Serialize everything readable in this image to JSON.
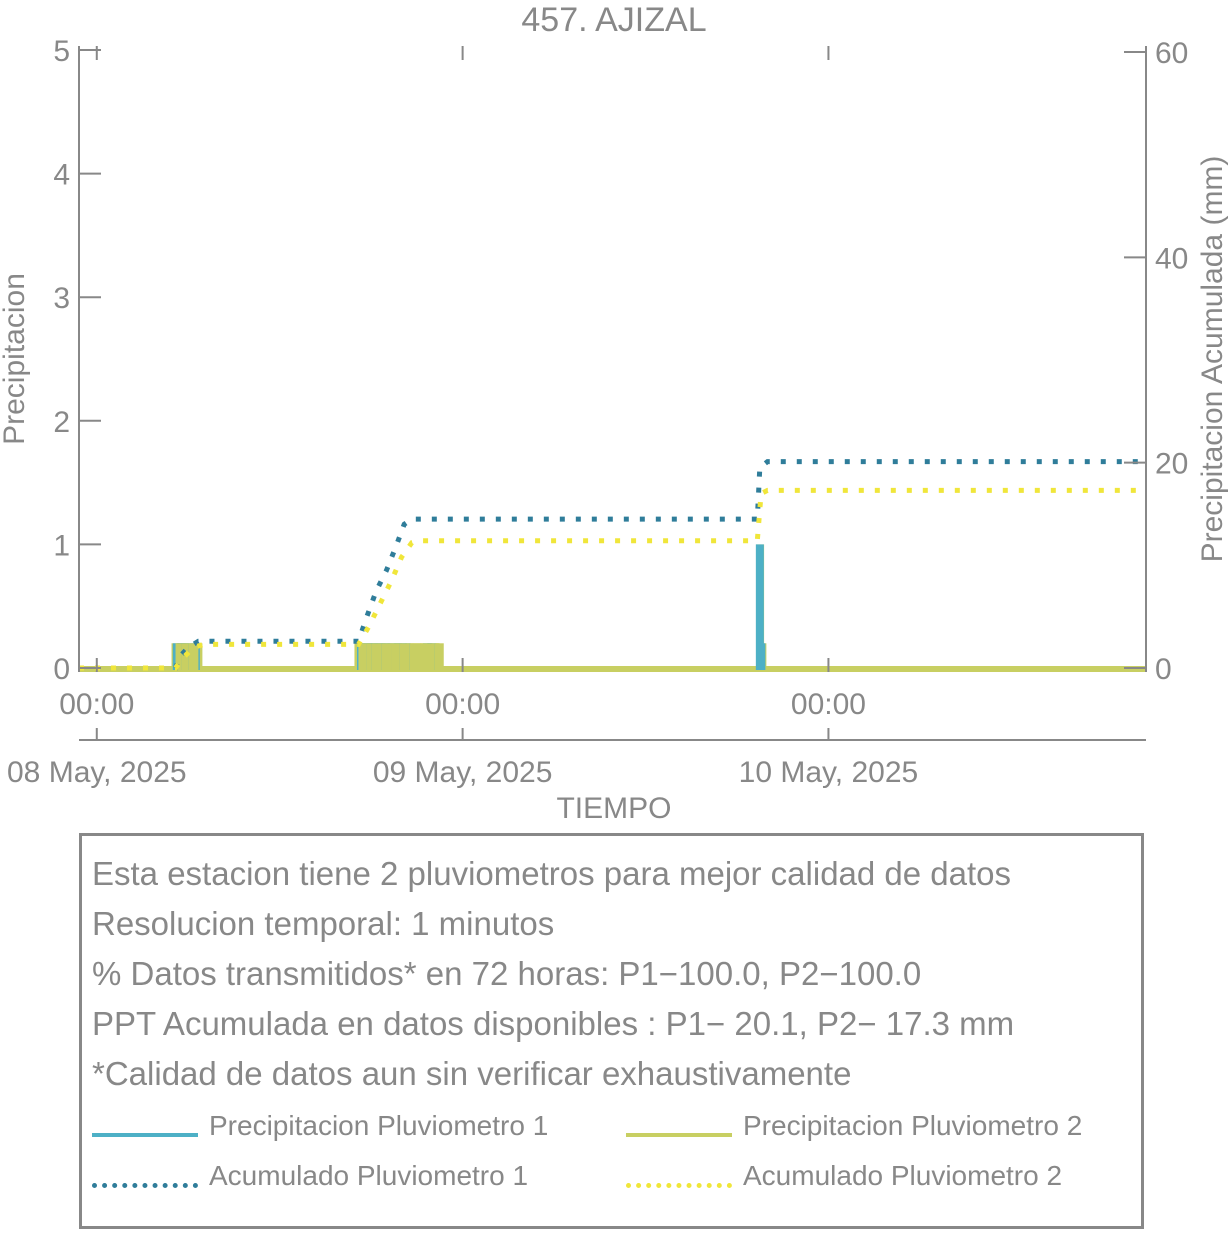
{
  "chart_data": {
    "type": "line",
    "title": "457. AJIZAL",
    "xlabel": "TIEMPO",
    "ylabel": "Precipitacion",
    "ylabel_right": "Precipitacion Acumulada (mm)",
    "x_range": [
      "2025-05-07 22:50",
      "2025-05-10 20:50"
    ],
    "ylim": [
      0,
      5
    ],
    "ylim_right": [
      0,
      60
    ],
    "y_ticks": [
      0,
      1,
      2,
      3,
      4,
      5
    ],
    "y_ticks_right": [
      0,
      20,
      40,
      60
    ],
    "x_ticks": [
      {
        "time": "2025-05-08 00:00",
        "label": "00:00",
        "date_label": "08 May, 2025"
      },
      {
        "time": "2025-05-09 00:00",
        "label": "00:00",
        "date_label": "09 May, 2025"
      },
      {
        "time": "2025-05-10 00:00",
        "label": "00:00",
        "date_label": "10 May, 2025"
      }
    ],
    "colors": {
      "p1": "#4db0c6",
      "p2": "#c8cf62",
      "acum1": "#2f7d9a",
      "acum2": "#f0e63a",
      "axis": "#888888"
    },
    "series": [
      {
        "name": "Precipitacion Pluviometro 1",
        "axis": "left",
        "style": "bars",
        "points": [
          [
            "2025-05-08 05:15",
            0.2
          ],
          [
            "2025-05-08 05:30",
            0.2
          ],
          [
            "2025-05-08 05:45",
            0.2
          ],
          [
            "2025-05-08 06:30",
            0.2
          ],
          [
            "2025-05-08 17:20",
            0.2
          ],
          [
            "2025-05-08 17:50",
            0.2
          ],
          [
            "2025-05-08 18:10",
            0.2
          ],
          [
            "2025-05-08 18:30",
            0.2
          ],
          [
            "2025-05-08 19:00",
            0.2
          ],
          [
            "2025-05-08 19:45",
            0.2
          ],
          [
            "2025-05-08 20:20",
            0.2
          ],
          [
            "2025-05-08 21:40",
            0.2
          ],
          [
            "2025-05-08 22:00",
            0.2
          ],
          [
            "2025-05-09 19:30",
            1.0
          ],
          [
            "2025-05-09 19:36",
            0.2
          ]
        ]
      },
      {
        "name": "Precipitacion Pluviometro 2",
        "axis": "left",
        "style": "bars",
        "points": [
          [
            "2025-05-08 05:10",
            0.2
          ],
          [
            "2025-05-08 05:35",
            0.2
          ],
          [
            "2025-05-08 06:00",
            0.2
          ],
          [
            "2025-05-08 06:40",
            0.2
          ],
          [
            "2025-05-08 17:10",
            0.2
          ],
          [
            "2025-05-08 17:40",
            0.2
          ],
          [
            "2025-05-08 18:00",
            0.2
          ],
          [
            "2025-05-08 18:40",
            0.2
          ],
          [
            "2025-05-08 19:20",
            0.2
          ],
          [
            "2025-05-08 19:50",
            0.2
          ],
          [
            "2025-05-08 20:30",
            0.2
          ],
          [
            "2025-05-08 21:00",
            0.2
          ],
          [
            "2025-05-08 21:30",
            0.2
          ],
          [
            "2025-05-08 22:10",
            0.2
          ],
          [
            "2025-05-08 22:30",
            0.2
          ],
          [
            "2025-05-09 19:31",
            1.0
          ],
          [
            "2025-05-09 19:40",
            0.2
          ]
        ]
      },
      {
        "name": "Acumulado Pluviometro 1",
        "axis": "right",
        "style": "dotted",
        "points": [
          [
            "2025-05-07 22:50",
            0
          ],
          [
            "2025-05-08 05:10",
            0
          ],
          [
            "2025-05-08 05:30",
            1.2
          ],
          [
            "2025-05-08 06:00",
            2.0
          ],
          [
            "2025-05-08 06:40",
            2.6
          ],
          [
            "2025-05-08 17:10",
            2.6
          ],
          [
            "2025-05-08 17:40",
            4.8
          ],
          [
            "2025-05-08 18:20",
            7.5
          ],
          [
            "2025-05-08 19:00",
            9.5
          ],
          [
            "2025-05-08 19:40",
            12.0
          ],
          [
            "2025-05-08 20:10",
            14.0
          ],
          [
            "2025-05-08 20:40",
            14.5
          ],
          [
            "2025-05-09 19:20",
            14.5
          ],
          [
            "2025-05-09 19:30",
            19.5
          ],
          [
            "2025-05-09 20:00",
            20.1
          ],
          [
            "2025-05-10 20:50",
            20.1
          ]
        ]
      },
      {
        "name": "Acumulado Pluviometro 2",
        "axis": "right",
        "style": "dotted",
        "points": [
          [
            "2025-05-07 22:50",
            0
          ],
          [
            "2025-05-08 05:10",
            0
          ],
          [
            "2025-05-08 05:40",
            1.0
          ],
          [
            "2025-05-08 06:20",
            2.0
          ],
          [
            "2025-05-08 07:00",
            2.3
          ],
          [
            "2025-05-08 17:10",
            2.3
          ],
          [
            "2025-05-08 17:50",
            4.0
          ],
          [
            "2025-05-08 18:40",
            6.5
          ],
          [
            "2025-05-08 19:20",
            8.5
          ],
          [
            "2025-05-08 20:00",
            10.8
          ],
          [
            "2025-05-08 20:40",
            12.2
          ],
          [
            "2025-05-08 21:10",
            12.4
          ],
          [
            "2025-05-09 19:20",
            12.4
          ],
          [
            "2025-05-09 19:35",
            17.0
          ],
          [
            "2025-05-09 20:00",
            17.3
          ],
          [
            "2025-05-10 20:50",
            17.3
          ]
        ]
      }
    ]
  },
  "info": {
    "lines": [
      "Esta estacion tiene 2 pluviometros para mejor calidad de datos",
      "Resolucion temporal: 1 minutos",
      "% Datos transmitidos* en 72 horas: P1−100.0, P2−100.0",
      "PPT Acumulada en datos disponibles : P1− 20.1, P2− 17.3 mm",
      "*Calidad de datos aun sin verificar exhaustivamente"
    ]
  },
  "legend": {
    "p1": "Precipitacion Pluviometro 1",
    "p2": "Precipitacion Pluviometro 2",
    "acum1": "Acumulado Pluviometro 1",
    "acum2": "Acumulado Pluviometro 2"
  }
}
